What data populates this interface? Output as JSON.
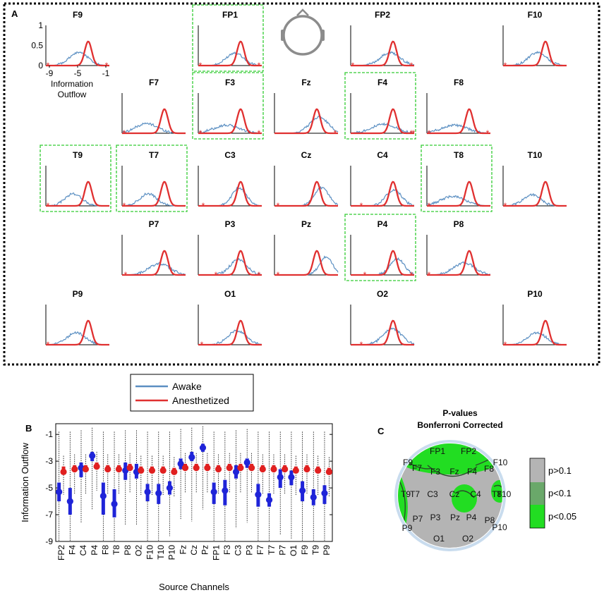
{
  "panel_labels": {
    "a": "A",
    "b": "B",
    "c": "C"
  },
  "head_icon": "scalp-head-icon",
  "colors": {
    "awake": "#5b8fc2",
    "anesthetized": "#e03030",
    "highlight_box": "#33cc33",
    "panel_border": "#000000",
    "box_blue": "#1f24d8",
    "box_red": "#e02020",
    "gray_map": "#b4b4b4",
    "green_light": "#22dd22",
    "green_dark": "#6aa86a"
  },
  "legend": {
    "awake": "Awake",
    "anesthetized": "Anesthetized"
  },
  "chart_data": [
    {
      "type": "line",
      "panel": "A",
      "description_none": "",
      "title": "",
      "xlabel": "Information Outflow",
      "ylabel": "",
      "x_ticks": [
        "-9",
        "-5",
        "-1"
      ],
      "y_ticks": [
        "0",
        "0.5",
        "1"
      ],
      "xlim": [
        -9.5,
        -0.5
      ],
      "ylim": [
        0,
        1
      ],
      "anesthetized_curve": {
        "mean": -3.5,
        "sd": 0.5,
        "peak": 0.6
      },
      "channels": [
        {
          "name": "F9",
          "highlight": false,
          "awake": {
            "mean": -4.8,
            "sd": 1.3,
            "peak": 0.33
          },
          "stars": [
            -9.2,
            -0.9
          ]
        },
        {
          "name": "FP1",
          "highlight": true,
          "awake": {
            "mean": -4.3,
            "sd": 1.2,
            "peak": 0.32
          },
          "stars": [
            -9.2,
            -0.9
          ]
        },
        {
          "name": "FP2",
          "highlight": false,
          "awake": {
            "mean": -3.9,
            "sd": 1.4,
            "peak": 0.32
          },
          "stars": [
            -9.2,
            -0.9
          ]
        },
        {
          "name": "F10",
          "highlight": false,
          "awake": {
            "mean": -4.6,
            "sd": 1.3,
            "peak": 0.32
          },
          "stars": [
            -9.2
          ]
        },
        {
          "name": "F7",
          "highlight": false,
          "awake": {
            "mean": -6.0,
            "sd": 1.6,
            "peak": 0.24
          },
          "stars": [
            -9.2
          ]
        },
        {
          "name": "F3",
          "highlight": true,
          "awake": {
            "mean": -5.5,
            "sd": 1.8,
            "peak": 0.2
          },
          "stars": [
            -9.2,
            -0.9
          ]
        },
        {
          "name": "Fz",
          "highlight": false,
          "awake": {
            "mean": -3.2,
            "sd": 1.3,
            "peak": 0.4
          },
          "stars": [
            -0.9
          ]
        },
        {
          "name": "F4",
          "highlight": true,
          "awake": {
            "mean": -4.8,
            "sd": 1.8,
            "peak": 0.22
          },
          "stars": [
            -0.9,
            -0.6
          ]
        },
        {
          "name": "F8",
          "highlight": false,
          "awake": {
            "mean": -5.6,
            "sd": 1.8,
            "peak": 0.2
          },
          "stars": [
            -9.2,
            -0.9
          ]
        },
        {
          "name": "T9",
          "highlight": true,
          "awake": {
            "mean": -5.6,
            "sd": 1.2,
            "peak": 0.3
          },
          "stars": [
            -9.2
          ]
        },
        {
          "name": "T7",
          "highlight": true,
          "awake": {
            "mean": -5.8,
            "sd": 1.2,
            "peak": 0.3
          },
          "stars": [
            -9.2
          ]
        },
        {
          "name": "C3",
          "highlight": false,
          "awake": {
            "mean": -3.7,
            "sd": 1.0,
            "peak": 0.45
          },
          "stars": [
            -8.8
          ]
        },
        {
          "name": "Cz",
          "highlight": false,
          "awake": {
            "mean": -2.8,
            "sd": 1.0,
            "peak": 0.45
          },
          "stars": [
            -9.0
          ]
        },
        {
          "name": "C4",
          "highlight": false,
          "awake": {
            "mean": -3.4,
            "sd": 1.1,
            "peak": 0.4
          },
          "stars": [
            -8.0
          ]
        },
        {
          "name": "T8",
          "highlight": true,
          "awake": {
            "mean": -5.8,
            "sd": 1.7,
            "peak": 0.24
          },
          "stars": [
            -9.2
          ]
        },
        {
          "name": "T10",
          "highlight": false,
          "awake": {
            "mean": -5.4,
            "sd": 1.2,
            "peak": 0.28
          },
          "stars": [
            -9.2
          ]
        },
        {
          "name": "P7",
          "highlight": false,
          "awake": {
            "mean": -4.2,
            "sd": 1.5,
            "peak": 0.28
          },
          "stars": [
            -9.0
          ]
        },
        {
          "name": "P3",
          "highlight": false,
          "awake": {
            "mean": -3.8,
            "sd": 1.2,
            "peak": 0.38
          },
          "stars": [
            -7.0,
            -0.9
          ]
        },
        {
          "name": "Pz",
          "highlight": false,
          "awake": {
            "mean": -2.2,
            "sd": 0.9,
            "peak": 0.45
          },
          "stars": [
            -9.0
          ]
        },
        {
          "name": "P4",
          "highlight": true,
          "awake": {
            "mean": -2.9,
            "sd": 1.0,
            "peak": 0.4
          },
          "stars": [
            -7.5,
            -0.9
          ]
        },
        {
          "name": "P8",
          "highlight": false,
          "awake": {
            "mean": -4.2,
            "sd": 1.5,
            "peak": 0.3
          },
          "stars": [
            -9.2
          ]
        },
        {
          "name": "P9",
          "highlight": false,
          "awake": {
            "mean": -5.2,
            "sd": 1.3,
            "peak": 0.3
          },
          "stars": [
            -9.2
          ]
        },
        {
          "name": "O1",
          "highlight": false,
          "awake": {
            "mean": -4.0,
            "sd": 1.3,
            "peak": 0.35
          },
          "stars": [
            -9.0
          ]
        },
        {
          "name": "O2",
          "highlight": false,
          "awake": {
            "mean": -3.6,
            "sd": 1.3,
            "peak": 0.4
          },
          "stars": [
            -8.0
          ]
        },
        {
          "name": "P10",
          "highlight": false,
          "awake": {
            "mean": -4.7,
            "sd": 1.3,
            "peak": 0.3
          },
          "stars": [
            -9.2
          ]
        }
      ]
    },
    {
      "type": "box",
      "panel": "B",
      "title": "",
      "xlabel": "Source Channels",
      "ylabel": "Information Outflow",
      "ylim": [
        -9,
        -0.2
      ],
      "y_ticks": [
        -1,
        -3,
        -5,
        -7,
        -9
      ],
      "categories": [
        "FP2",
        "F4",
        "C4",
        "P4",
        "F8",
        "T8",
        "P8",
        "O2",
        "F10",
        "T10",
        "P10",
        "Fz",
        "Cz",
        "Pz",
        "FP1",
        "F3",
        "C3",
        "P3",
        "F7",
        "T7",
        "P7",
        "O1",
        "F9",
        "T9",
        "P9"
      ],
      "awake": {
        "median": [
          -5.3,
          -6.0,
          -3.5,
          -2.6,
          -5.6,
          -6.2,
          -3.7,
          -3.8,
          -5.3,
          -5.4,
          -5.0,
          -3.2,
          -2.7,
          -2.0,
          -5.3,
          -5.2,
          -3.8,
          -3.1,
          -5.5,
          -5.9,
          -4.2,
          -4.2,
          -5.2,
          -5.7,
          -5.4
        ],
        "q1": [
          -6.0,
          -7.0,
          -4.2,
          -3.0,
          -7.0,
          -7.2,
          -4.4,
          -4.3,
          -6.0,
          -6.2,
          -5.5,
          -3.6,
          -3.0,
          -2.3,
          -6.2,
          -6.3,
          -4.3,
          -3.5,
          -6.4,
          -6.4,
          -5.0,
          -4.8,
          -6.0,
          -6.3,
          -6.2
        ],
        "q3": [
          -4.6,
          -5.0,
          -3.1,
          -2.3,
          -4.6,
          -5.1,
          -3.1,
          -3.2,
          -4.7,
          -4.7,
          -4.5,
          -2.8,
          -2.3,
          -1.7,
          -4.6,
          -4.4,
          -3.3,
          -2.8,
          -4.7,
          -5.4,
          -3.6,
          -3.7,
          -4.5,
          -5.1,
          -4.8
        ],
        "whisker_low": [
          -9.0,
          -9.0,
          -7.6,
          -6.6,
          -9.0,
          -9.0,
          -7.8,
          -7.8,
          -9.0,
          -9.0,
          -8.6,
          -7.4,
          -7.5,
          -6.6,
          -9.0,
          -9.0,
          -8.0,
          -7.6,
          -9.0,
          -9.0,
          -8.5,
          -8.8,
          -9.0,
          -9.0,
          -9.0
        ],
        "whisker_high": [
          -0.8,
          -0.8,
          -0.7,
          -0.5,
          -0.8,
          -0.8,
          -0.7,
          -0.7,
          -0.8,
          -0.8,
          -0.8,
          -0.6,
          -0.5,
          -0.4,
          -0.8,
          -0.8,
          -0.7,
          -0.6,
          -0.8,
          -0.8,
          -0.8,
          -0.8,
          -0.8,
          -0.8,
          -0.8
        ]
      },
      "anesthetized": {
        "median": [
          -3.8,
          -3.6,
          -3.6,
          -3.4,
          -3.6,
          -3.6,
          -3.5,
          -3.7,
          -3.7,
          -3.7,
          -3.8,
          -3.5,
          -3.5,
          -3.5,
          -3.6,
          -3.5,
          -3.5,
          -3.5,
          -3.6,
          -3.6,
          -3.6,
          -3.7,
          -3.6,
          -3.7,
          -3.8
        ],
        "q1": [
          -4.0,
          -3.8,
          -3.8,
          -3.6,
          -3.8,
          -3.8,
          -3.7,
          -3.9,
          -3.9,
          -3.9,
          -4.0,
          -3.7,
          -3.7,
          -3.7,
          -3.8,
          -3.7,
          -3.7,
          -3.7,
          -3.8,
          -3.8,
          -3.8,
          -3.9,
          -3.8,
          -3.9,
          -4.0
        ],
        "q3": [
          -3.4,
          -3.3,
          -3.3,
          -3.1,
          -3.3,
          -3.3,
          -3.2,
          -3.4,
          -3.4,
          -3.4,
          -3.5,
          -3.2,
          -3.2,
          -3.2,
          -3.3,
          -3.2,
          -3.2,
          -3.2,
          -3.3,
          -3.3,
          -3.3,
          -3.4,
          -3.3,
          -3.4,
          -3.5
        ],
        "whisker_low": [
          -5.5,
          -5.5,
          -5.5,
          -5.2,
          -5.5,
          -5.5,
          -5.4,
          -5.6,
          -5.6,
          -5.6,
          -5.7,
          -5.4,
          -5.4,
          -5.4,
          -5.5,
          -5.4,
          -5.4,
          -5.4,
          -5.5,
          -5.5,
          -5.5,
          -5.6,
          -5.5,
          -5.6,
          -5.7
        ],
        "whisker_high": [
          -2.6,
          -2.5,
          -2.5,
          -2.3,
          -2.5,
          -2.5,
          -2.4,
          -2.6,
          -2.6,
          -2.6,
          -2.7,
          -2.4,
          -2.4,
          -2.4,
          -2.5,
          -2.4,
          -2.4,
          -2.4,
          -2.5,
          -2.5,
          -2.5,
          -2.6,
          -2.5,
          -2.6,
          -2.7
        ]
      }
    },
    {
      "type": "heatmap",
      "panel": "C",
      "title": "P-values",
      "subtitle": "Bonferroni Corrected",
      "electrodes": [
        "FP1",
        "FP2",
        "F9",
        "F7",
        "F3",
        "Fz",
        "F4",
        "F8",
        "F10",
        "T9",
        "T7",
        "C3",
        "Cz",
        "C4",
        "T8",
        "T10",
        "P7",
        "P3",
        "Pz",
        "P4",
        "P8",
        "P9",
        "P10",
        "O1",
        "O2"
      ],
      "significant_p_lt_0_05": [
        "FP1",
        "FP2",
        "F9",
        "F7",
        "F3",
        "F4",
        "F8",
        "F10",
        "T9",
        "T7",
        "Cz",
        "C4",
        "T10",
        "P9"
      ],
      "colorbar": {
        "labels": [
          "p>0.1",
          "p<0.1",
          "p<0.05"
        ]
      }
    }
  ]
}
